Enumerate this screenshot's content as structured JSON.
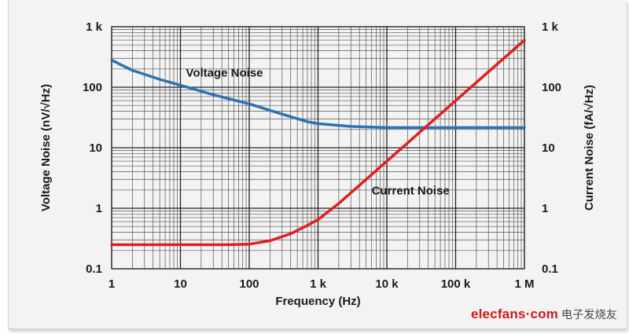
{
  "chart_data": {
    "type": "line",
    "title": "",
    "xlabel": "Frequency (Hz)",
    "ylabel_left": "Voltage Noise (nV/√Hz)",
    "ylabel_right": "Current Noise (fA/√Hz)",
    "x_scale": "log",
    "y_scale": "log",
    "xlim": [
      1,
      1000000
    ],
    "ylim": [
      0.1,
      1000
    ],
    "grid": true,
    "x_ticks": [
      {
        "value": 1,
        "label": "1"
      },
      {
        "value": 10,
        "label": "10"
      },
      {
        "value": 100,
        "label": "100"
      },
      {
        "value": 1000,
        "label": "1 k"
      },
      {
        "value": 10000,
        "label": "10 k"
      },
      {
        "value": 100000,
        "label": "100 k"
      },
      {
        "value": 1000000,
        "label": "1 M"
      }
    ],
    "y_ticks_left": [
      {
        "value": 0.1,
        "label": "0.1"
      },
      {
        "value": 1,
        "label": "1"
      },
      {
        "value": 10,
        "label": "10"
      },
      {
        "value": 100,
        "label": "100"
      },
      {
        "value": 1000,
        "label": "1 k"
      }
    ],
    "y_ticks_right": [
      {
        "value": 0.1,
        "label": "0.1"
      },
      {
        "value": 1,
        "label": "1"
      },
      {
        "value": 10,
        "label": "10"
      },
      {
        "value": 100,
        "label": "100"
      },
      {
        "value": 1000,
        "label": "1 k"
      }
    ],
    "series": [
      {
        "name": "Voltage Noise",
        "color": "#2b73b5",
        "label_at": {
          "x": 12,
          "y": 150
        },
        "points": [
          [
            1,
            280
          ],
          [
            2,
            190
          ],
          [
            5,
            135
          ],
          [
            10,
            108
          ],
          [
            30,
            75
          ],
          [
            100,
            53
          ],
          [
            300,
            36
          ],
          [
            700,
            27
          ],
          [
            1000,
            25
          ],
          [
            3000,
            22.5
          ],
          [
            10000,
            21.5
          ],
          [
            100000,
            21.5
          ],
          [
            1000000,
            21.5
          ]
        ]
      },
      {
        "name": "Current Noise",
        "color": "#e02020",
        "label_at": {
          "x": 6000,
          "y": 1.7
        },
        "points": [
          [
            1,
            0.25
          ],
          [
            10,
            0.25
          ],
          [
            50,
            0.25
          ],
          [
            100,
            0.255
          ],
          [
            200,
            0.29
          ],
          [
            400,
            0.38
          ],
          [
            700,
            0.52
          ],
          [
            1000,
            0.65
          ],
          [
            2000,
            1.2
          ],
          [
            5000,
            3
          ],
          [
            10000,
            6
          ],
          [
            100000,
            60
          ],
          [
            1000000,
            600
          ]
        ]
      }
    ]
  },
  "watermark": {
    "text": "elecfans·com",
    "cn": "电子发烧友"
  }
}
